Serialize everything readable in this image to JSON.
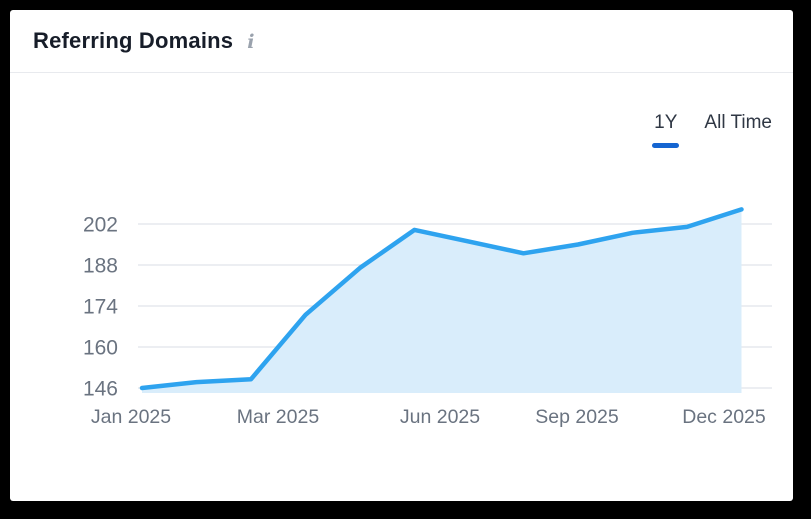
{
  "header": {
    "title": "Referring Domains",
    "info_icon_glyph": "i"
  },
  "tabs": {
    "one_year_label": "1Y",
    "all_time_label": "All Time",
    "active_tab": "1Y"
  },
  "chart_data": {
    "type": "area",
    "title": "Referring Domains",
    "x": [
      "Jan 2025",
      "Feb 2025",
      "Mar 2025",
      "Apr 2025",
      "May 2025",
      "Jun 2025",
      "Jul 2025",
      "Aug 2025",
      "Sep 2025",
      "Oct 2025",
      "Nov 2025",
      "Dec 2025"
    ],
    "values": [
      146,
      148,
      149,
      171,
      187,
      200,
      196,
      192,
      195,
      199,
      201,
      207
    ],
    "y_ticks": [
      146,
      160,
      174,
      188,
      202
    ],
    "x_tick_labels": [
      "Jan 2025",
      "Mar 2025",
      "Jun 2025",
      "Sep 2025",
      "Dec 2025"
    ],
    "x_tick_month_index": [
      0,
      2,
      5,
      8,
      11
    ],
    "ylim": [
      144,
      211
    ],
    "grid": "horizontal-only",
    "legend": "none",
    "colors": {
      "line": "#2EA3EF",
      "fill": "#D9EDFB",
      "grid": "#E6E9ED",
      "axis_text": "#6A7380",
      "active_tab_underline": "#1565D1",
      "title_text": "#171D29",
      "tab_text": "#2F3744",
      "card_background": "#FFFFFF",
      "frame_background": "#000000"
    }
  }
}
